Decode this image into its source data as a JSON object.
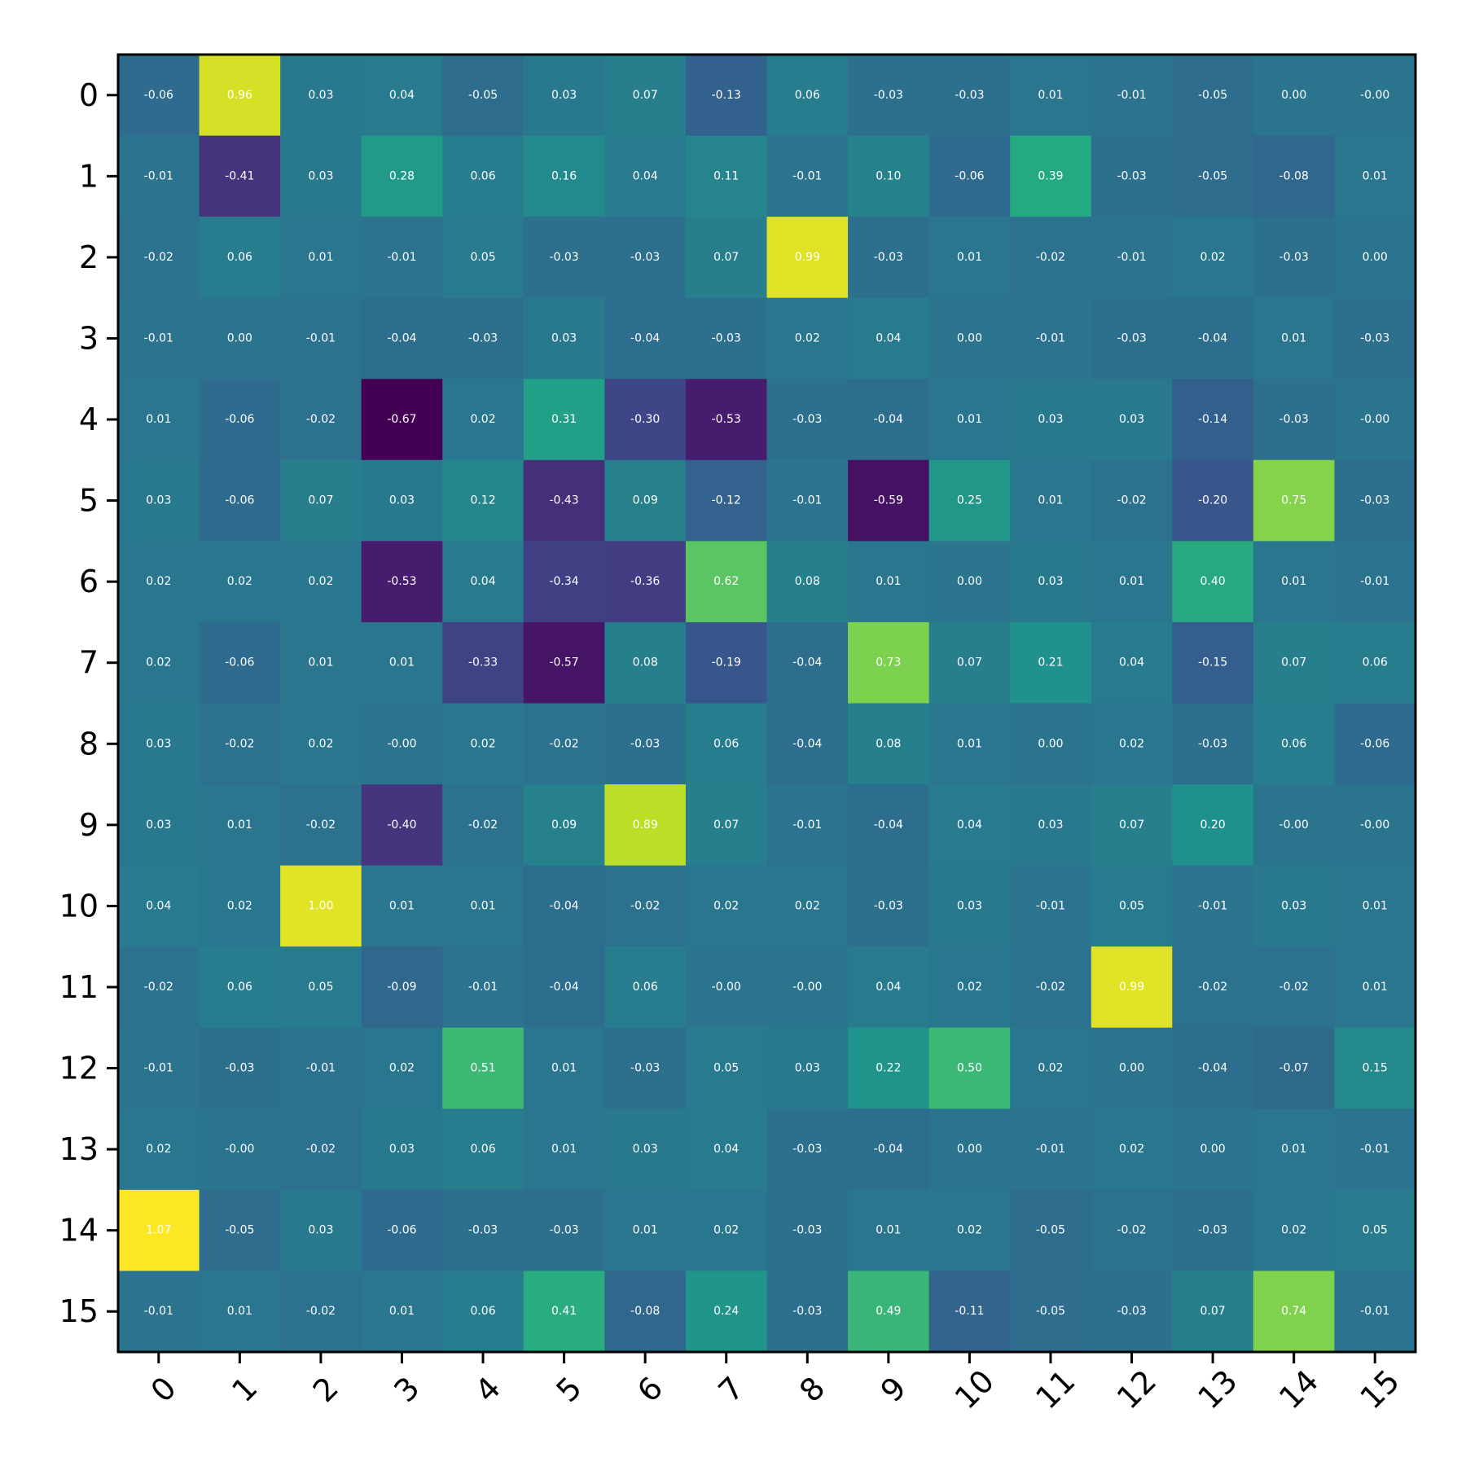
{
  "chart_data": {
    "type": "heatmap",
    "title": "",
    "xlabel": "",
    "ylabel": "",
    "colormap": "viridis",
    "vmin": -0.67,
    "vmax": 1.07,
    "grid": false,
    "x_labels": [
      "0",
      "1",
      "2",
      "3",
      "4",
      "5",
      "6",
      "7",
      "8",
      "9",
      "10",
      "11",
      "12",
      "13",
      "14",
      "15"
    ],
    "y_labels": [
      "0",
      "1",
      "2",
      "3",
      "4",
      "5",
      "6",
      "7",
      "8",
      "9",
      "10",
      "11",
      "12",
      "13",
      "14",
      "15"
    ],
    "values": [
      [
        -0.06,
        0.96,
        0.03,
        0.04,
        -0.05,
        0.03,
        0.07,
        -0.13,
        0.06,
        -0.03,
        -0.03,
        0.01,
        -0.01,
        -0.05,
        0.0,
        -0.0
      ],
      [
        -0.01,
        -0.41,
        0.03,
        0.28,
        0.06,
        0.16,
        0.04,
        0.11,
        -0.01,
        0.1,
        -0.06,
        0.39,
        -0.03,
        -0.05,
        -0.08,
        0.01
      ],
      [
        -0.02,
        0.06,
        0.01,
        -0.01,
        0.05,
        -0.03,
        -0.03,
        0.07,
        0.99,
        -0.03,
        0.01,
        -0.02,
        -0.01,
        0.02,
        -0.03,
        0.0
      ],
      [
        -0.01,
        0.0,
        -0.01,
        -0.04,
        -0.03,
        0.03,
        -0.04,
        -0.03,
        0.02,
        0.04,
        0.0,
        -0.01,
        -0.03,
        -0.04,
        0.01,
        -0.03
      ],
      [
        0.01,
        -0.06,
        -0.02,
        -0.67,
        0.02,
        0.31,
        -0.3,
        -0.53,
        -0.03,
        -0.04,
        0.01,
        0.03,
        0.03,
        -0.14,
        -0.03,
        -0.0
      ],
      [
        0.03,
        -0.06,
        0.07,
        0.03,
        0.12,
        -0.43,
        0.09,
        -0.12,
        -0.01,
        -0.59,
        0.25,
        0.01,
        -0.02,
        -0.2,
        0.75,
        -0.03
      ],
      [
        0.02,
        0.02,
        0.02,
        -0.53,
        0.04,
        -0.34,
        -0.36,
        0.62,
        0.08,
        0.01,
        0.0,
        0.03,
        0.01,
        0.4,
        0.01,
        -0.01
      ],
      [
        0.02,
        -0.06,
        0.01,
        0.01,
        -0.33,
        -0.57,
        0.08,
        -0.19,
        -0.04,
        0.73,
        0.07,
        0.21,
        0.04,
        -0.15,
        0.07,
        0.06
      ],
      [
        0.03,
        -0.02,
        0.02,
        -0.0,
        0.02,
        -0.02,
        -0.03,
        0.06,
        -0.04,
        0.08,
        0.01,
        0.0,
        0.02,
        -0.03,
        0.06,
        -0.06
      ],
      [
        0.03,
        0.01,
        -0.02,
        -0.4,
        -0.02,
        0.09,
        0.89,
        0.07,
        -0.01,
        -0.04,
        0.04,
        0.03,
        0.07,
        0.2,
        -0.0,
        -0.0
      ],
      [
        0.04,
        0.02,
        1.0,
        0.01,
        0.01,
        -0.04,
        -0.02,
        0.02,
        0.02,
        -0.03,
        0.03,
        -0.01,
        0.05,
        -0.01,
        0.03,
        0.01
      ],
      [
        -0.02,
        0.06,
        0.05,
        -0.09,
        -0.01,
        -0.04,
        0.06,
        -0.0,
        -0.0,
        0.04,
        0.02,
        -0.02,
        0.99,
        -0.02,
        -0.02,
        0.01
      ],
      [
        -0.01,
        -0.03,
        -0.01,
        0.02,
        0.51,
        0.01,
        -0.03,
        0.05,
        0.03,
        0.22,
        0.5,
        0.02,
        0.0,
        -0.04,
        -0.07,
        0.15
      ],
      [
        0.02,
        -0.0,
        -0.02,
        0.03,
        0.06,
        0.01,
        0.03,
        0.04,
        -0.03,
        -0.04,
        0.0,
        -0.01,
        0.02,
        0.0,
        0.01,
        -0.01
      ],
      [
        1.07,
        -0.05,
        0.03,
        -0.06,
        -0.03,
        -0.03,
        0.01,
        0.02,
        -0.03,
        0.01,
        0.02,
        -0.05,
        -0.02,
        -0.03,
        0.02,
        0.05
      ],
      [
        -0.01,
        0.01,
        -0.02,
        0.01,
        0.06,
        0.41,
        -0.08,
        0.24,
        -0.03,
        0.49,
        -0.11,
        -0.05,
        -0.03,
        0.07,
        0.74,
        -0.01
      ]
    ]
  }
}
